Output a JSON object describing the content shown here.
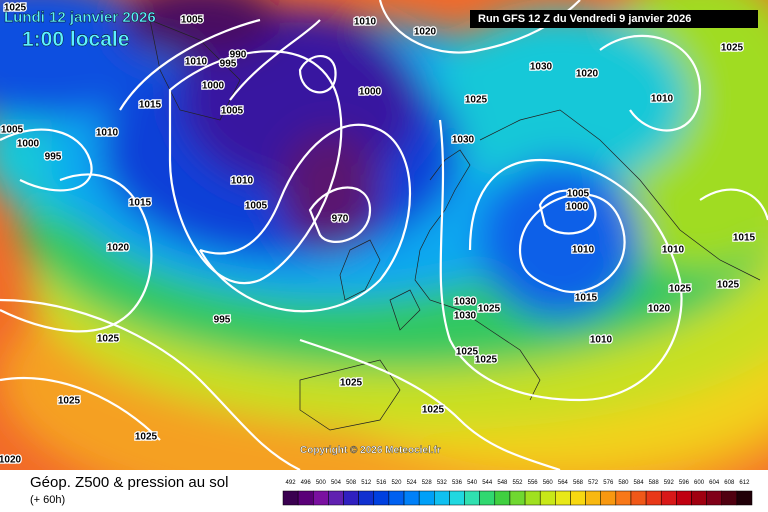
{
  "header": {
    "date": "Lundi 12 janvier 2026",
    "time": "1:00 locale",
    "run": "Run GFS 12 Z du Vendredi 9 janvier 2026"
  },
  "footer": {
    "copyright": "Copyright © 2026 Meteociel.fr",
    "title": "Géop. Z500 & pression au sol",
    "step": "(+ 60h)"
  },
  "pressure_labels": [
    "1025",
    "1005",
    "1010",
    "1020",
    "1025",
    "990",
    "995",
    "1010",
    "1030",
    "1020",
    "1000",
    "1000",
    "1025",
    "1010",
    "1015",
    "1005",
    "1005",
    "1010",
    "1000",
    "995",
    "1030",
    "1010",
    "1005",
    "1015",
    "1005",
    "1000",
    "970",
    "1010",
    "1010",
    "1020",
    "1015",
    "1025",
    "1025",
    "1015",
    "1030",
    "1025",
    "1030",
    "995",
    "1020",
    "1010",
    "1025",
    "1025",
    "1025",
    "1025",
    "1025",
    "1025",
    "1025",
    "1020"
  ],
  "colorbar": {
    "labels": [
      492,
      496,
      500,
      504,
      508,
      512,
      516,
      520,
      524,
      528,
      532,
      536,
      540,
      544,
      548,
      552,
      556,
      560,
      564,
      568,
      572,
      576,
      580,
      584,
      588,
      592,
      596,
      600,
      604,
      608,
      612
    ],
    "colors": [
      "#3a0050",
      "#5a0078",
      "#7a10a0",
      "#6020b0",
      "#3020c0",
      "#1030d0",
      "#0040e0",
      "#0060f0",
      "#0080f8",
      "#00a0f8",
      "#10c0f0",
      "#20d8e0",
      "#30e0b0",
      "#30d870",
      "#40d040",
      "#70d830",
      "#a0e020",
      "#c8e818",
      "#e8e818",
      "#f8d810",
      "#f8b810",
      "#f89810",
      "#f87818",
      "#f05818",
      "#e83818",
      "#d81818",
      "#c00010",
      "#a00010",
      "#800018",
      "#500010",
      "#200008"
    ]
  }
}
